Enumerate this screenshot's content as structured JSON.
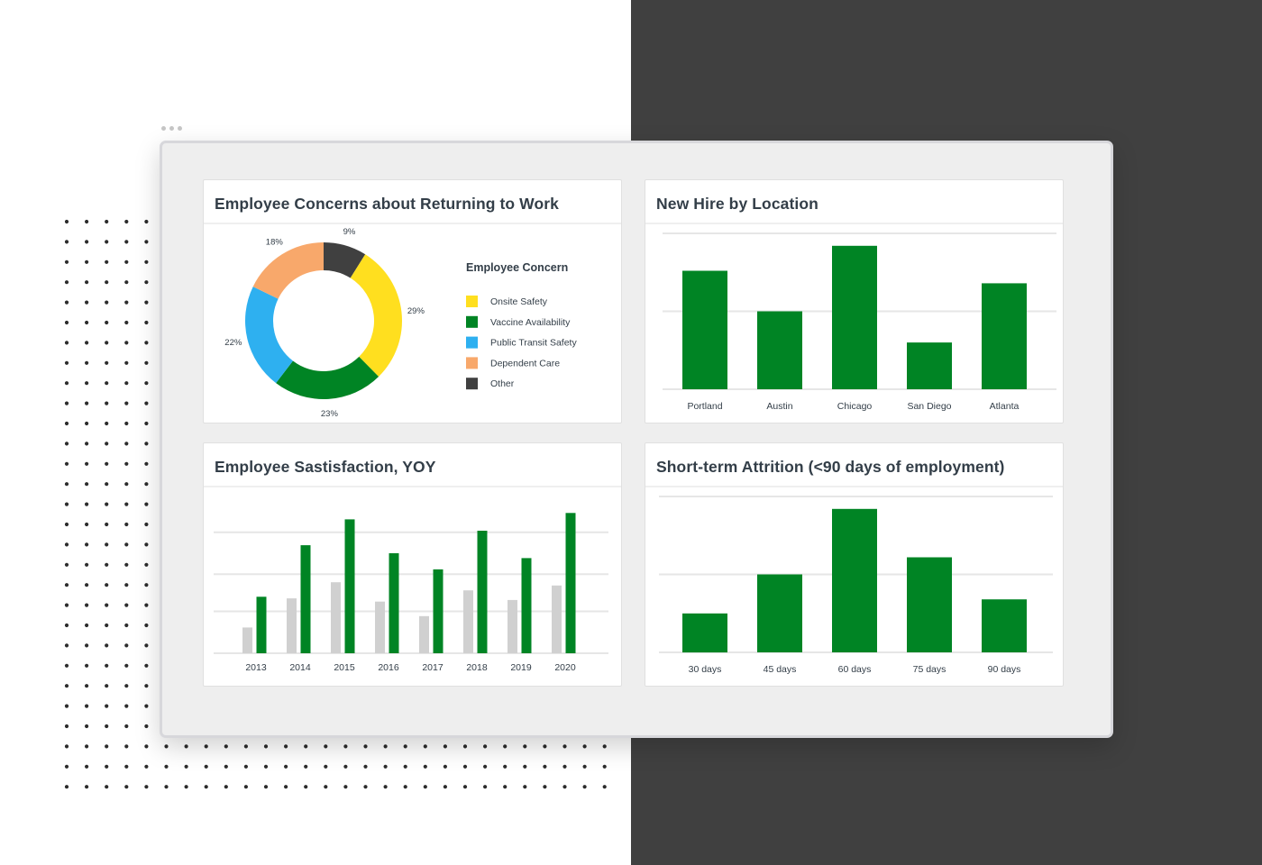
{
  "colors": {
    "green": "#008424",
    "gray": "#d0d0d0",
    "yellow": "#ffdf1f",
    "blue": "#2eb0f0",
    "orange": "#f8a86b",
    "dark": "#404040",
    "text": "#333e48"
  },
  "cards": {
    "concerns": {
      "title": "Employee Concerns about Returning to Work",
      "legend_title": "Employee Concern",
      "legend": [
        {
          "label": "Onsite Safety",
          "color": "#ffdf1f"
        },
        {
          "label": "Vaccine Availability",
          "color": "#008424"
        },
        {
          "label": "Public Transit Safety",
          "color": "#2eb0f0"
        },
        {
          "label": "Dependent Care",
          "color": "#f8a86b"
        },
        {
          "label": "Other",
          "color": "#404040"
        }
      ]
    },
    "new_hire": {
      "title": "New Hire by Location"
    },
    "satisfaction": {
      "title": "Employee Sastisfaction, YOY"
    },
    "attrition": {
      "title": "Short-term Attrition (<90 days of employment)"
    }
  },
  "chart_data": [
    {
      "type": "pie",
      "name": "Employee Concerns about Returning to Work",
      "categories": [
        "Other",
        "Onsite Safety",
        "Vaccine Availability",
        "Public Transit Safety",
        "Dependent Care"
      ],
      "values": [
        9,
        29,
        23,
        22,
        18
      ],
      "labels": [
        "9%",
        "29%",
        "23%",
        "22%",
        "18%"
      ],
      "colors": [
        "#404040",
        "#ffdf1f",
        "#008424",
        "#2eb0f0",
        "#f8a86b"
      ],
      "legend": "right"
    },
    {
      "type": "bar",
      "name": "New Hire by Location",
      "categories": [
        "Portland",
        "Austin",
        "Chicago",
        "San Diego",
        "Atlanta"
      ],
      "values": [
        76,
        50,
        92,
        30,
        68
      ],
      "ylim": [
        0,
        100
      ],
      "grid": true
    },
    {
      "type": "bar",
      "name": "Employee Sastisfaction, YOY",
      "categories": [
        "2013",
        "2014",
        "2015",
        "2016",
        "2017",
        "2018",
        "2019",
        "2020"
      ],
      "series": [
        {
          "values": [
            16,
            34,
            44,
            32,
            23,
            39,
            33,
            42
          ],
          "color": "#d0d0d0"
        },
        {
          "values": [
            35,
            67,
            83,
            62,
            52,
            76,
            59,
            87
          ],
          "color": "#008424"
        }
      ],
      "ylim": [
        0,
        100
      ],
      "grid": true
    },
    {
      "type": "bar",
      "name": "Short-term Attrition (<90 days of employment)",
      "categories": [
        "30 days",
        "45 days",
        "60 days",
        "75 days",
        "90 days"
      ],
      "values": [
        25,
        50,
        92,
        61,
        34
      ],
      "ylim": [
        0,
        100
      ],
      "grid": true
    }
  ]
}
